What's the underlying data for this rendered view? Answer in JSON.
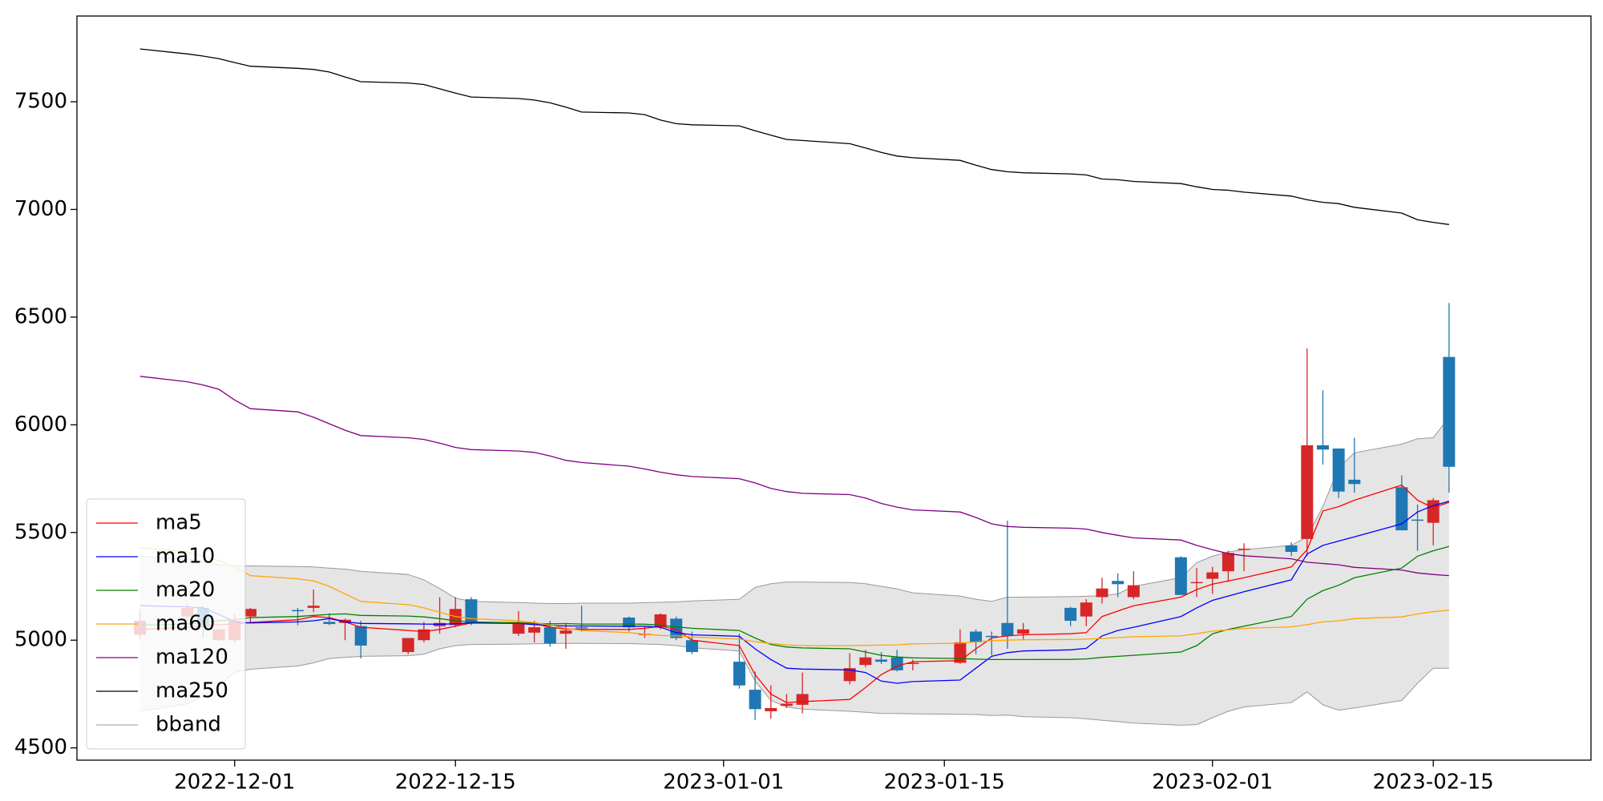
{
  "chart_data": {
    "type": "candlestick",
    "x": [
      "2022-11-25",
      "2022-11-28",
      "2022-11-29",
      "2022-11-30",
      "2022-12-01",
      "2022-12-02",
      "2022-12-05",
      "2022-12-06",
      "2022-12-07",
      "2022-12-08",
      "2022-12-09",
      "2022-12-12",
      "2022-12-13",
      "2022-12-14",
      "2022-12-15",
      "2022-12-16",
      "2022-12-19",
      "2022-12-20",
      "2022-12-21",
      "2022-12-22",
      "2022-12-23",
      "2022-12-26",
      "2022-12-27",
      "2022-12-28",
      "2022-12-29",
      "2022-12-30",
      "2023-01-02",
      "2023-01-03",
      "2023-01-04",
      "2023-01-05",
      "2023-01-06",
      "2023-01-09",
      "2023-01-10",
      "2023-01-11",
      "2023-01-12",
      "2023-01-13",
      "2023-01-16",
      "2023-01-17",
      "2023-01-18",
      "2023-01-19",
      "2023-01-20",
      "2023-01-23",
      "2023-01-24",
      "2023-01-25",
      "2023-01-26",
      "2023-01-27",
      "2023-01-30",
      "2023-01-31",
      "2023-02-01",
      "2023-02-02",
      "2023-02-03",
      "2023-02-06",
      "2023-02-07",
      "2023-02-08",
      "2023-02-09",
      "2023-02-10",
      "2023-02-13",
      "2023-02-14",
      "2023-02-15",
      "2023-02-16"
    ],
    "open": [
      5025,
      5110,
      5150,
      5000,
      5000,
      5110,
      5140,
      5150,
      5085,
      5080,
      5065,
      4945,
      5000,
      5065,
      5070,
      5190,
      5030,
      5035,
      5060,
      5030,
      5060,
      5105,
      5025,
      5060,
      5100,
      5000,
      4900,
      4770,
      4670,
      4695,
      4700,
      4810,
      4885,
      4910,
      4920,
      4890,
      4895,
      5040,
      5020,
      5080,
      5030,
      5150,
      5110,
      5200,
      5275,
      5200,
      5385,
      5265,
      5285,
      5320,
      5420,
      5440,
      5470,
      5905,
      5890,
      5745,
      5710,
      5560,
      5545,
      6315
    ],
    "high": [
      5145,
      5170,
      5160,
      5055,
      5120,
      5150,
      5150,
      5235,
      5125,
      5100,
      5090,
      5010,
      5085,
      5200,
      5200,
      5200,
      5135,
      5090,
      5090,
      5080,
      5160,
      5110,
      5065,
      5125,
      5110,
      5040,
      5030,
      4855,
      4790,
      4750,
      4850,
      4940,
      4955,
      4945,
      4955,
      4910,
      5050,
      5050,
      5040,
      5555,
      5080,
      5155,
      5190,
      5290,
      5310,
      5320,
      5390,
      5335,
      5340,
      5415,
      5450,
      5455,
      6355,
      6160,
      5890,
      5940,
      5765,
      5630,
      5660,
      6565
    ],
    "low": [
      5005,
      5090,
      5010,
      4995,
      4990,
      5080,
      5070,
      5130,
      5070,
      5000,
      4915,
      4935,
      4990,
      5030,
      5060,
      5070,
      5020,
      4990,
      4970,
      4960,
      5040,
      5040,
      5010,
      5050,
      5000,
      4935,
      4775,
      4630,
      4635,
      4685,
      4660,
      4795,
      4875,
      4890,
      4855,
      4860,
      4890,
      4935,
      4930,
      4960,
      5000,
      5065,
      5065,
      5170,
      5200,
      5190,
      5210,
      5200,
      5215,
      5270,
      5320,
      5390,
      5390,
      5815,
      5660,
      5685,
      5510,
      5415,
      5440,
      5685
    ],
    "close": [
      5090,
      5150,
      5060,
      5050,
      5090,
      5145,
      5135,
      5160,
      5075,
      5095,
      4975,
      5010,
      5050,
      5080,
      5145,
      5080,
      5075,
      5060,
      4985,
      5045,
      5055,
      5060,
      5030,
      5120,
      5010,
      4945,
      4790,
      4680,
      4685,
      4705,
      4750,
      4870,
      4920,
      4900,
      4860,
      4895,
      4990,
      4990,
      5015,
      5020,
      5050,
      5090,
      5175,
      5240,
      5260,
      5255,
      5210,
      5270,
      5315,
      5405,
      5425,
      5410,
      5905,
      5885,
      5690,
      5725,
      5510,
      5555,
      5650,
      5805
    ],
    "up_color": "#d62728",
    "down_color": "#1f77b4",
    "series": [
      {
        "name": "ma5",
        "color": "#ff0000",
        "values": [
          5050,
          5060,
          5070,
          5072,
          5075,
          5082,
          5095,
          5110,
          5105,
          5085,
          5060,
          5045,
          5040,
          5050,
          5065,
          5080,
          5082,
          5078,
          5060,
          5052,
          5050,
          5050,
          5055,
          5065,
          5050,
          5000,
          4975,
          4840,
          4750,
          4710,
          4715,
          4725,
          4780,
          4840,
          4880,
          4900,
          4905,
          4960,
          5010,
          5020,
          5025,
          5030,
          5035,
          5110,
          5135,
          5160,
          5200,
          5235,
          5260,
          5275,
          5290,
          5340,
          5420,
          5600,
          5620,
          5650,
          5720,
          5650,
          5615,
          5640
        ]
      },
      {
        "name": "ma10",
        "color": "#0000ff",
        "values": [
          5160,
          5155,
          5150,
          5120,
          5085,
          5080,
          5085,
          5090,
          5100,
          5085,
          5078,
          5076,
          5075,
          5074,
          5076,
          5080,
          5078,
          5072,
          5068,
          5066,
          5066,
          5065,
          5065,
          5060,
          5035,
          5025,
          5018,
          4960,
          4910,
          4870,
          4866,
          4862,
          4850,
          4810,
          4800,
          4808,
          4815,
          4870,
          4925,
          4942,
          4950,
          4955,
          4962,
          5020,
          5045,
          5060,
          5110,
          5150,
          5185,
          5205,
          5225,
          5280,
          5400,
          5440,
          5460,
          5480,
          5540,
          5595,
          5625,
          5645
        ]
      },
      {
        "name": "ma20",
        "color": "#008000",
        "values": [
          5070,
          5075,
          5082,
          5090,
          5095,
          5105,
          5110,
          5115,
          5120,
          5122,
          5115,
          5112,
          5108,
          5100,
          5090,
          5085,
          5080,
          5078,
          5076,
          5077,
          5075,
          5075,
          5074,
          5070,
          5062,
          5055,
          5045,
          5010,
          4980,
          4968,
          4964,
          4960,
          4945,
          4930,
          4922,
          4918,
          4915,
          4912,
          4910,
          4910,
          4910,
          4911,
          4913,
          4920,
          4925,
          4930,
          4945,
          4975,
          5030,
          5050,
          5065,
          5110,
          5190,
          5230,
          5255,
          5290,
          5335,
          5390,
          5415,
          5435
        ]
      },
      {
        "name": "ma60",
        "color": "#ffa500",
        "values": [
          5430,
          5410,
          5390,
          5370,
          5340,
          5300,
          5285,
          5275,
          5250,
          5215,
          5180,
          5165,
          5150,
          5130,
          5110,
          5100,
          5090,
          5082,
          5070,
          5055,
          5045,
          5035,
          5028,
          5022,
          5020,
          5015,
          5005,
          4993,
          4985,
          4978,
          4975,
          4975,
          4976,
          4977,
          4978,
          4983,
          4986,
          4992,
          4998,
          5000,
          5002,
          5003,
          5005,
          5008,
          5012,
          5016,
          5020,
          5030,
          5042,
          5048,
          5055,
          5062,
          5072,
          5085,
          5090,
          5100,
          5108,
          5122,
          5132,
          5140
        ]
      },
      {
        "name": "ma120",
        "color": "#800080",
        "values": [
          6225,
          6200,
          6185,
          6165,
          6115,
          6075,
          6060,
          6035,
          6005,
          5975,
          5950,
          5940,
          5932,
          5915,
          5895,
          5885,
          5878,
          5872,
          5855,
          5835,
          5825,
          5808,
          5795,
          5780,
          5768,
          5760,
          5750,
          5730,
          5705,
          5690,
          5682,
          5676,
          5660,
          5635,
          5618,
          5605,
          5595,
          5570,
          5540,
          5528,
          5524,
          5520,
          5516,
          5500,
          5487,
          5475,
          5465,
          5440,
          5420,
          5402,
          5392,
          5378,
          5362,
          5356,
          5350,
          5338,
          5326,
          5312,
          5305,
          5300
        ]
      },
      {
        "name": "ma250",
        "color": "#000000",
        "values": [
          7745,
          7722,
          7712,
          7700,
          7682,
          7665,
          7655,
          7650,
          7638,
          7615,
          7593,
          7587,
          7580,
          7560,
          7540,
          7522,
          7515,
          7508,
          7495,
          7475,
          7452,
          7448,
          7440,
          7415,
          7398,
          7393,
          7388,
          7365,
          7345,
          7325,
          7320,
          7305,
          7285,
          7265,
          7248,
          7240,
          7228,
          7205,
          7185,
          7175,
          7170,
          7165,
          7160,
          7141,
          7138,
          7130,
          7120,
          7105,
          7093,
          7089,
          7080,
          7062,
          7045,
          7033,
          7027,
          7010,
          6983,
          6952,
          6940,
          6930
        ]
      }
    ],
    "band": {
      "name": "bband",
      "color": "#999999",
      "fill": "#e5e5e5",
      "upper": [
        5390,
        5375,
        5365,
        5350,
        5345,
        5345,
        5342,
        5340,
        5335,
        5330,
        5320,
        5305,
        5280,
        5240,
        5195,
        5180,
        5175,
        5172,
        5170,
        5170,
        5172,
        5172,
        5174,
        5176,
        5178,
        5182,
        5190,
        5245,
        5262,
        5270,
        5270,
        5268,
        5262,
        5250,
        5238,
        5220,
        5205,
        5190,
        5180,
        5200,
        5200,
        5202,
        5204,
        5206,
        5215,
        5250,
        5290,
        5360,
        5390,
        5410,
        5420,
        5440,
        5480,
        5620,
        5800,
        5870,
        5910,
        5935,
        5940,
        6035
      ],
      "lower": [
        4670,
        4705,
        4740,
        4790,
        4850,
        4865,
        4880,
        4895,
        4915,
        4920,
        4925,
        4928,
        4935,
        4960,
        4975,
        4980,
        4982,
        4983,
        4984,
        4985,
        4985,
        4984,
        4982,
        4980,
        4975,
        4965,
        4950,
        4810,
        4720,
        4690,
        4680,
        4670,
        4665,
        4660,
        4660,
        4658,
        4656,
        4655,
        4650,
        4652,
        4645,
        4640,
        4635,
        4628,
        4622,
        4615,
        4605,
        4608,
        4640,
        4670,
        4690,
        4710,
        4760,
        4700,
        4675,
        4685,
        4720,
        4800,
        4870,
        4870
      ]
    },
    "xlim": [
      "2022-11-21",
      "2023-02-25"
    ],
    "xticks": [
      "2022-12-01",
      "2022-12-15",
      "2023-01-01",
      "2023-01-15",
      "2023-02-01",
      "2023-02-15"
    ],
    "ylim": [
      4443,
      7898
    ],
    "yticks": [
      4500,
      5000,
      5500,
      6000,
      6500,
      7000,
      7500
    ],
    "legend": "lower left"
  }
}
